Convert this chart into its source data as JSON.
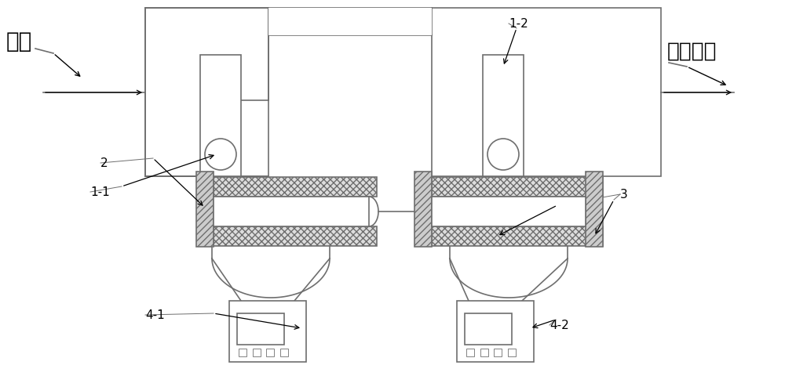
{
  "bg_color": "#ffffff",
  "line_color": "#6e6e6e",
  "label_color": "#000000",
  "labels": {
    "carrier_gas": "载气",
    "formaldehyde": "甲醛气体",
    "l11": "1-1",
    "l12": "1-2",
    "l2": "2",
    "l3": "3",
    "l41": "4-1",
    "l42": "4-2"
  },
  "figsize": [
    10.0,
    4.81
  ],
  "dpi": 100
}
